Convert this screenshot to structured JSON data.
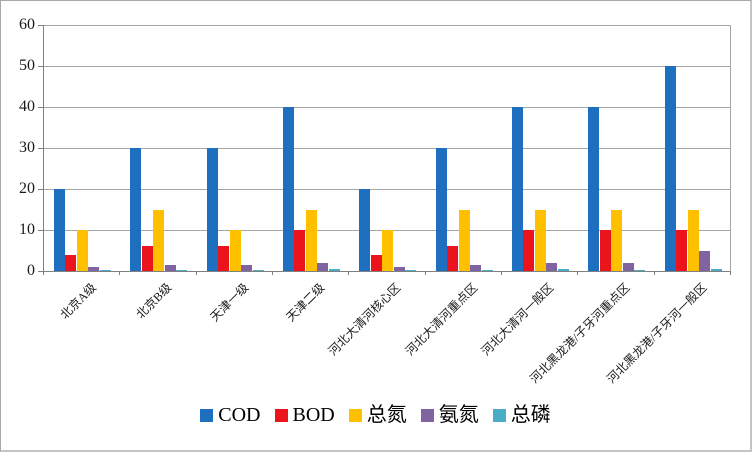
{
  "chart_data": {
    "type": "bar",
    "title": "",
    "xlabel": "",
    "ylabel": "",
    "categories": [
      "北京A级",
      "北京B级",
      "天津一级",
      "天津二级",
      "河北大清河核心区",
      "河北大清河重点区",
      "河北大清河一般区",
      "河北黑龙港/子牙河重点区",
      "河北黑龙港/子牙河一般区"
    ],
    "series": [
      {
        "name": "COD",
        "color": "#1f6fc0",
        "values": [
          20,
          30,
          30,
          40,
          20,
          30,
          40,
          40,
          50
        ]
      },
      {
        "name": "BOD",
        "color": "#eb141c",
        "values": [
          4,
          6,
          6,
          10,
          4,
          6,
          10,
          10,
          10
        ]
      },
      {
        "name": "总氮",
        "color": "#ffc000",
        "values": [
          10,
          15,
          10,
          15,
          10,
          15,
          15,
          15,
          15
        ]
      },
      {
        "name": "氨氮",
        "color": "#8064a2",
        "values": [
          1,
          1.5,
          1.5,
          2,
          1,
          1.5,
          2,
          2,
          5
        ]
      },
      {
        "name": "总磷",
        "color": "#4bacc6",
        "values": [
          0.3,
          0.3,
          0.3,
          0.5,
          0.3,
          0.3,
          0.5,
          0.3,
          0.5
        ]
      }
    ],
    "ylim": [
      0,
      60
    ],
    "ytick_step": 10,
    "ytick_labels": [
      "0",
      "10",
      "20",
      "30",
      "40",
      "50",
      "60"
    ],
    "grid": true,
    "legend_position": "bottom"
  },
  "style": {
    "grid_color": "#a6a6a6",
    "axis_color": "#808080",
    "text_color": "#1a1a1a",
    "background": "#ffffff"
  }
}
